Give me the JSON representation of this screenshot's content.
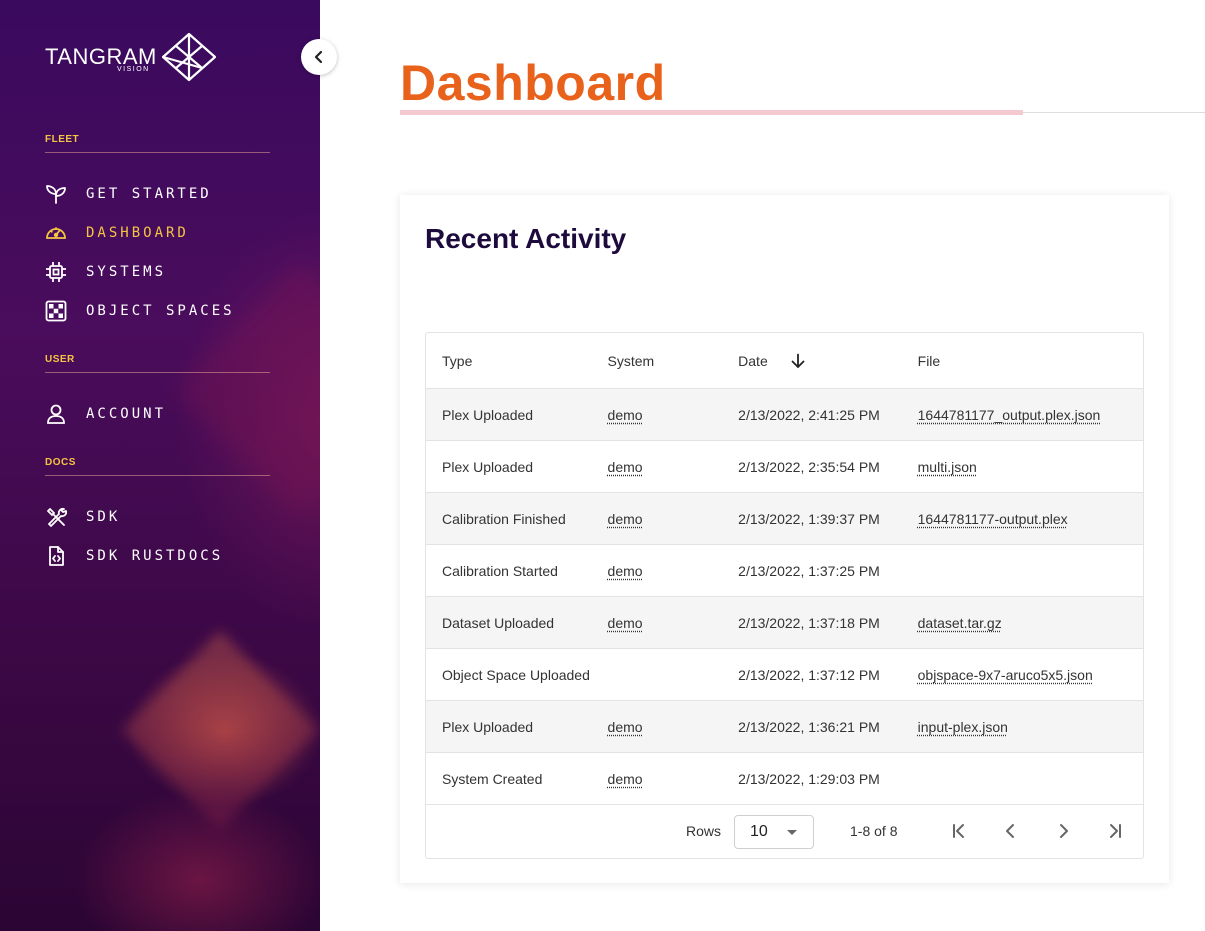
{
  "app": {
    "logo_text": "TANGRAM",
    "logo_sub": "VISION"
  },
  "sidebar": {
    "sections": {
      "fleet": "FLEET",
      "user": "USER",
      "docs": "DOCS"
    },
    "items": [
      {
        "label": "GET STARTED",
        "icon": "sprout-icon"
      },
      {
        "label": "DASHBOARD",
        "icon": "gauge-icon",
        "active": true
      },
      {
        "label": "SYSTEMS",
        "icon": "chip-icon"
      },
      {
        "label": "OBJECT SPACES",
        "icon": "checkerboard-icon"
      },
      {
        "label": "ACCOUNT",
        "icon": "user-icon"
      },
      {
        "label": "SDK",
        "icon": "tools-icon"
      },
      {
        "label": "SDK RUSTDOCS",
        "icon": "code-file-icon"
      }
    ],
    "colors": {
      "accent": "#f5c542",
      "bg": "#3a0a5e"
    }
  },
  "main": {
    "title": "Dashboard",
    "title_color": "#e8621c",
    "card": {
      "title": "Recent Activity",
      "table": {
        "headers": {
          "type": "Type",
          "system": "System",
          "date": "Date",
          "file": "File"
        },
        "sort": {
          "column": "Date",
          "direction": "desc",
          "icon": "arrow-down-icon"
        },
        "rows": [
          {
            "type": "Plex Uploaded",
            "system": "demo",
            "date": "2/13/2022, 2:41:25 PM",
            "file": "1644781177_output.plex.json"
          },
          {
            "type": "Plex Uploaded",
            "system": "demo",
            "date": "2/13/2022, 2:35:54 PM",
            "file": "multi.json"
          },
          {
            "type": "Calibration Finished",
            "system": "demo",
            "date": "2/13/2022, 1:39:37 PM",
            "file": "1644781177-output.plex"
          },
          {
            "type": "Calibration Started",
            "system": "demo",
            "date": "2/13/2022, 1:37:25 PM",
            "file": ""
          },
          {
            "type": "Dataset Uploaded",
            "system": "demo",
            "date": "2/13/2022, 1:37:18 PM",
            "file": "dataset.tar.gz"
          },
          {
            "type": "Object Space Uploaded",
            "system": "",
            "date": "2/13/2022, 1:37:12 PM",
            "file": "objspace-9x7-aruco5x5.json"
          },
          {
            "type": "Plex Uploaded",
            "system": "demo",
            "date": "2/13/2022, 1:36:21 PM",
            "file": "input-plex.json"
          },
          {
            "type": "System Created",
            "system": "demo",
            "date": "2/13/2022, 1:29:03 PM",
            "file": ""
          }
        ]
      },
      "pagination": {
        "rows_label": "Rows",
        "rows_value": "10",
        "range": "1-8 of 8"
      }
    }
  }
}
